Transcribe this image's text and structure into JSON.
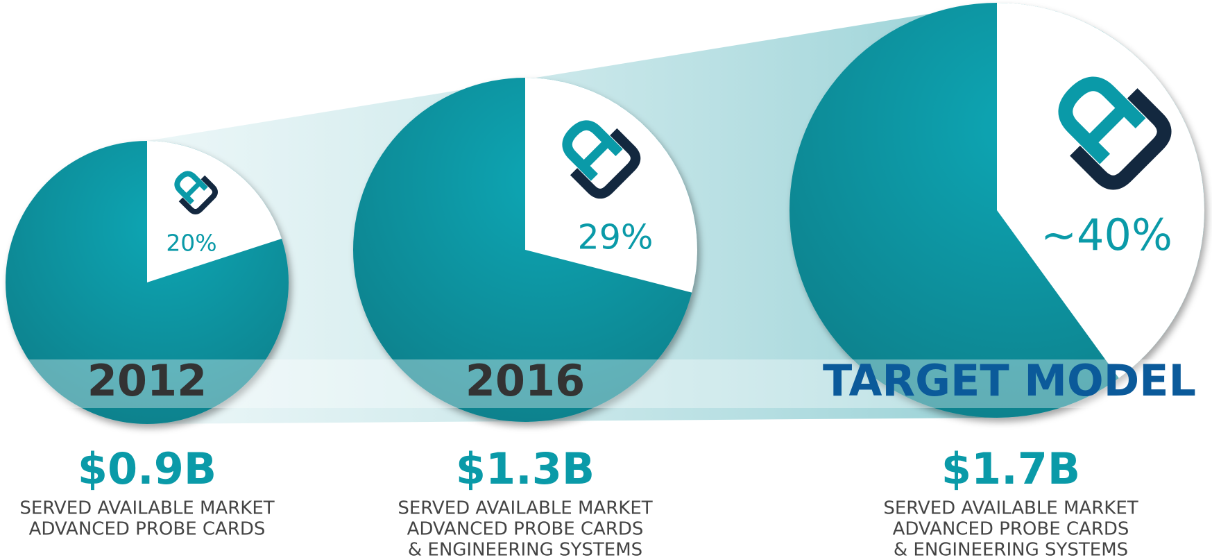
{
  "chart_data": [
    {
      "type": "pie",
      "title": "2012",
      "title_color": "#333333",
      "color": "#ffffff",
      "base_color": "#0a9aa8",
      "values": [
        20
      ],
      "value_labels": [
        "20%"
      ],
      "annotations": [
        "$0.9B",
        "SERVED AVAILABLE MARKET",
        "ADVANCED PROBE CARDS"
      ]
    },
    {
      "type": "pie",
      "title": "2016",
      "title_color": "#333333",
      "color": "#ffffff",
      "base_color": "#0a9aa8",
      "values": [
        29
      ],
      "value_labels": [
        "29%"
      ],
      "annotations": [
        "$1.3B",
        "SERVED AVAILABLE MARKET",
        "ADVANCED PROBE CARDS",
        "& ENGINEERING SYSTEMS"
      ]
    },
    {
      "type": "pie",
      "title": "TARGET MODEL",
      "title_color": "#0b5a9a",
      "color": "#ffffff",
      "base_color": "#0a9aa8",
      "values": [
        40
      ],
      "value_labels": [
        "~40%"
      ],
      "annotations": [
        "$1.7B",
        "SERVED AVAILABLE MARKET",
        "ADVANCED PROBE CARDS",
        "& ENGINEERING SYSTEMS"
      ]
    }
  ]
}
